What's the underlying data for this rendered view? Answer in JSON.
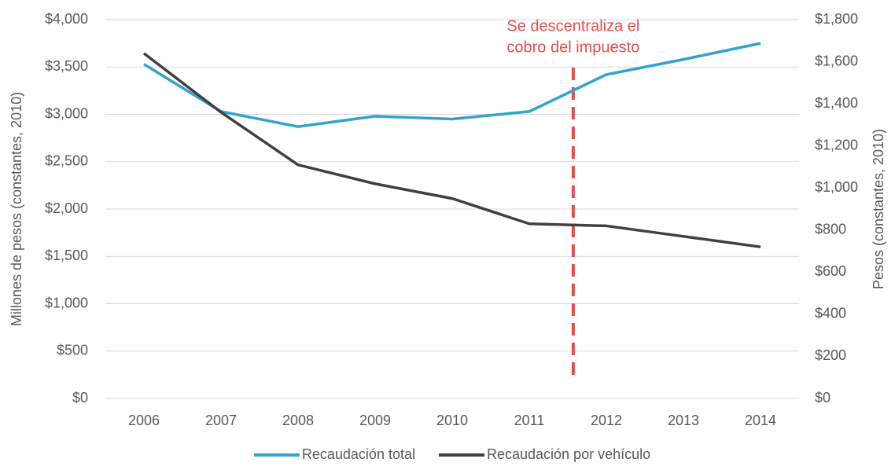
{
  "chart_data": {
    "type": "line",
    "categories": [
      "2006",
      "2007",
      "2008",
      "2009",
      "2010",
      "2011",
      "2012",
      "2013",
      "2014"
    ],
    "series": [
      {
        "name": "Recaudación total",
        "color": "#31a4cc",
        "values": [
          3530,
          3030,
          2870,
          2980,
          2950,
          3030,
          3420,
          3580,
          3750
        ]
      },
      {
        "name": "Recaudación por vehículo",
        "color": "#404040",
        "axis": "y2",
        "values": [
          1640,
          1360,
          1110,
          1020,
          950,
          830,
          820,
          770,
          720
        ]
      }
    ],
    "ylabel": "Millones de pesos (constantes, 2010)",
    "y2label": "Pesos (constantes, 2010)",
    "ylim": [
      0,
      4000
    ],
    "yticks": [
      {
        "value": 0,
        "label": "$0"
      },
      {
        "value": 500,
        "label": "$500"
      },
      {
        "value": 1000,
        "label": "$1,000"
      },
      {
        "value": 1500,
        "label": "$1,500"
      },
      {
        "value": 2000,
        "label": "$2,000"
      },
      {
        "value": 2500,
        "label": "$2,500"
      },
      {
        "value": 3000,
        "label": "$3,000"
      },
      {
        "value": 3500,
        "label": "$3,500"
      },
      {
        "value": 4000,
        "label": "$4,000"
      }
    ],
    "y2lim": [
      0,
      1800
    ],
    "y2ticks": [
      {
        "value": 0,
        "label": "$0"
      },
      {
        "value": 200,
        "label": "$200"
      },
      {
        "value": 400,
        "label": "$400"
      },
      {
        "value": 600,
        "label": "$600"
      },
      {
        "value": 800,
        "label": "$800"
      },
      {
        "value": 1000,
        "label": "$1,000"
      },
      {
        "value": 1200,
        "label": "$1,200"
      },
      {
        "value": 1400,
        "label": "$1,400"
      },
      {
        "value": 1600,
        "label": "$1,600"
      },
      {
        "value": 1800,
        "label": "$1,800"
      }
    ],
    "grid": true,
    "legend": "bottom",
    "annotation": {
      "lines": [
        "Se descentraliza el",
        "cobro del impuesto"
      ],
      "color": "#e84c4c"
    }
  }
}
